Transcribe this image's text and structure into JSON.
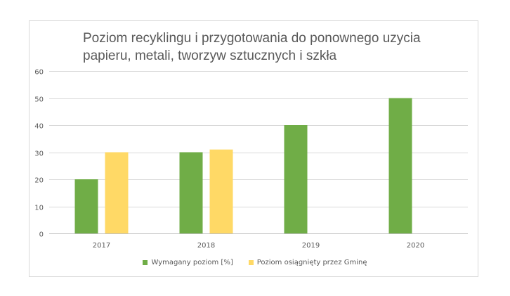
{
  "chart_data": {
    "type": "bar",
    "title": "Poziom recyklingu i przygotowania do ponownego uzycia papieru, metali, tworzyw sztucznych i szkła",
    "xlabel": "",
    "ylabel": "",
    "categories": [
      "2017",
      "2018",
      "2019",
      "2020"
    ],
    "ylim": [
      0,
      60
    ],
    "yticks": [
      0,
      10,
      20,
      30,
      40,
      50,
      60
    ],
    "grid": true,
    "legend": "bottom",
    "series": [
      {
        "name": "Wymagany poziom [%]",
        "color": "#70ad47",
        "values": [
          20,
          30,
          40,
          50
        ]
      },
      {
        "name": "Poziom osiągnięty przez Gminę",
        "color": "#ffd966",
        "values": [
          30,
          31,
          null,
          null
        ]
      }
    ]
  }
}
